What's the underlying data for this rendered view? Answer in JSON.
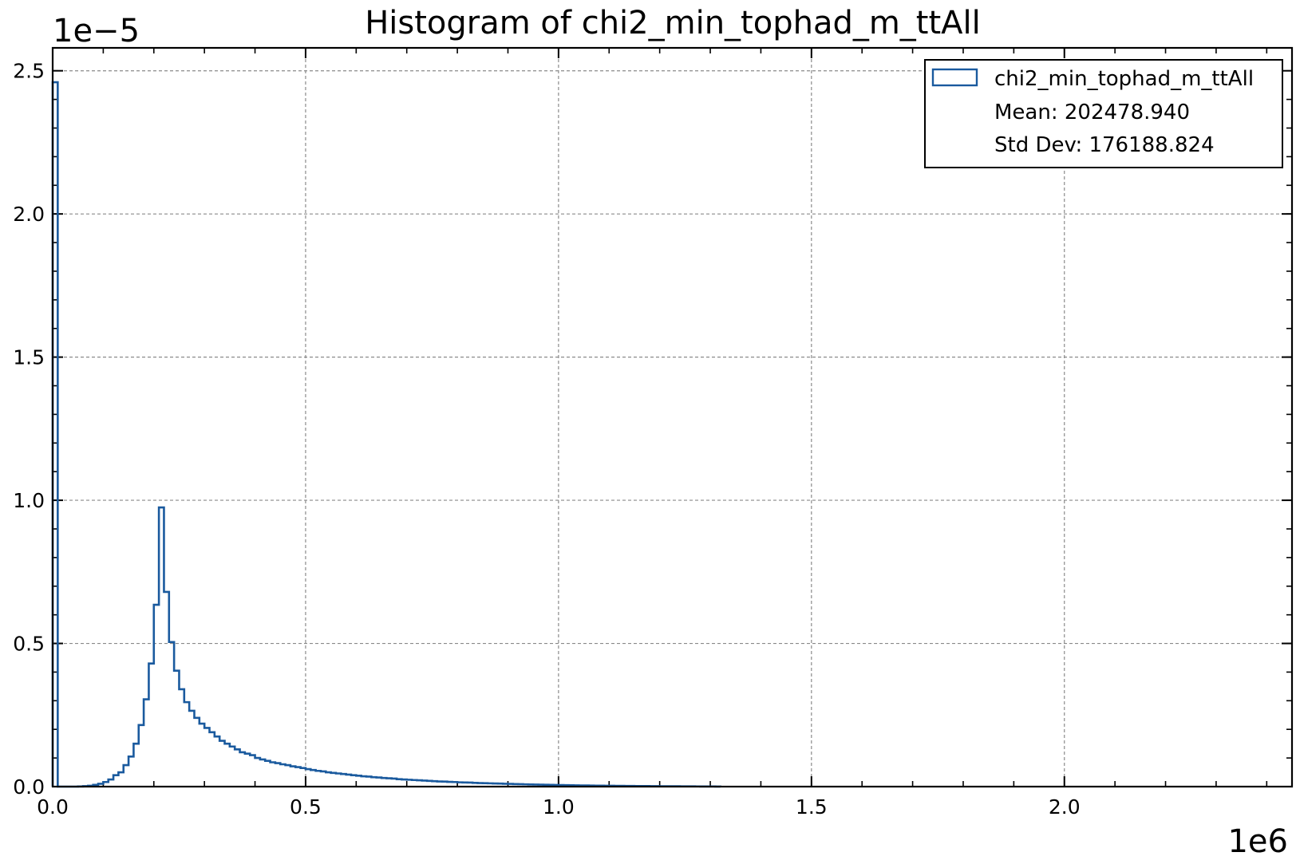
{
  "chart_data": {
    "type": "histogram",
    "title": "Histogram of chi2_min_tophad_m_ttAll",
    "xlabel": "",
    "ylabel": "",
    "x_offset_label": "1e6",
    "y_offset_label": "1e−5",
    "xlim": [
      0,
      2450000
    ],
    "ylim": [
      0,
      2.58e-05
    ],
    "x_ticks": [
      0,
      500000,
      1000000,
      1500000,
      2000000
    ],
    "x_tick_labels": [
      "0.0",
      "0.5",
      "1.0",
      "1.5",
      "2.0"
    ],
    "y_ticks": [
      0,
      5e-06,
      1e-05,
      1.5e-05,
      2e-05,
      2.5e-05
    ],
    "y_tick_labels": [
      "0.0",
      "0.5",
      "1.0",
      "1.5",
      "2.0",
      "2.5"
    ],
    "grid": true,
    "legend_position": "top-right",
    "color": "#1a5a9e",
    "bin_width": 10000,
    "bin_start": 0,
    "series": [
      {
        "name": "chi2_min_tophad_m_ttAll",
        "values": [
          2.46e-05,
          0,
          0,
          0,
          0,
          5e-09,
          1.5e-08,
          3e-08,
          6e-08,
          1e-07,
          1.6e-07,
          2.5e-07,
          4e-07,
          5e-07,
          7.5e-07,
          1.05e-06,
          1.5e-06,
          2.15e-06,
          3.05e-06,
          4.3e-06,
          6.35e-06,
          9.75e-06,
          6.8e-06,
          5.05e-06,
          4.05e-06,
          3.4e-06,
          2.95e-06,
          2.65e-06,
          2.4e-06,
          2.2e-06,
          2.05e-06,
          1.9e-06,
          1.75e-06,
          1.6e-06,
          1.5e-06,
          1.4e-06,
          1.3e-06,
          1.2e-06,
          1.15e-06,
          1.1e-06,
          1e-06,
          9.5e-07,
          9e-07,
          8.5e-07,
          8.2e-07,
          7.8e-07,
          7.5e-07,
          7.1e-07,
          6.8e-07,
          6.5e-07,
          6.1e-07,
          5.8e-07,
          5.5e-07,
          5.3e-07,
          5e-07,
          4.8e-07,
          4.6e-07,
          4.4e-07,
          4.2e-07,
          4e-07,
          3.8e-07,
          3.6e-07,
          3.5e-07,
          3.3e-07,
          3.2e-07,
          3e-07,
          2.9e-07,
          2.8e-07,
          2.6e-07,
          2.5e-07,
          2.4e-07,
          2.3e-07,
          2.2e-07,
          2.1e-07,
          2e-07,
          1.9e-07,
          1.8e-07,
          1.75e-07,
          1.65e-07,
          1.6e-07,
          1.5e-07,
          1.45e-07,
          1.4e-07,
          1.3e-07,
          1.25e-07,
          1.2e-07,
          1.15e-07,
          1.1e-07,
          1.05e-07,
          1e-07,
          9.5e-08,
          9e-08,
          8.5e-08,
          8e-08,
          7.6e-08,
          7.2e-08,
          6.8e-08,
          6.4e-08,
          6e-08,
          5.7e-08,
          5.4e-08,
          5.1e-08,
          4.8e-08,
          4.5e-08,
          4.2e-08,
          4e-08,
          3.7e-08,
          3.5e-08,
          3.3e-08,
          3.1e-08,
          2.9e-08,
          2.7e-08,
          2.5e-08,
          2.4e-08,
          2.2e-08,
          2.1e-08,
          1.9e-08,
          1.8e-08,
          1.6e-08,
          1.5e-08,
          1.4e-08,
          1.3e-08,
          1.2e-08,
          1.1e-08,
          1e-08,
          9e-09,
          8e-09,
          7e-09,
          6e-09,
          5e-09,
          4e-09,
          3e-09
        ]
      }
    ],
    "stats": {
      "mean_label": "Mean: 202478.940",
      "std_label": "Std Dev: 176188.824"
    }
  }
}
